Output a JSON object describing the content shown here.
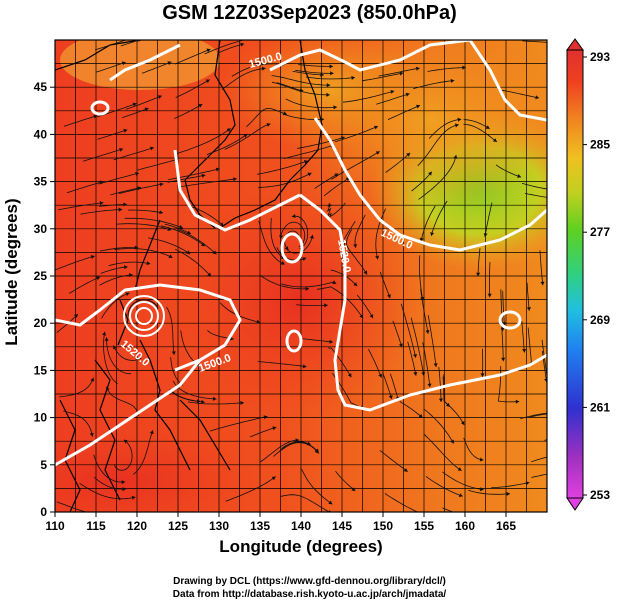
{
  "title": "GSM 12Z03Sep2023 (850.0hPa)",
  "map": {
    "xlabel": "Longitude (degrees)",
    "ylabel": "Latitude  (degrees)",
    "lon_range": [
      110,
      170
    ],
    "lat_range": [
      0,
      50
    ],
    "lon_ticks": [
      110,
      115,
      120,
      125,
      130,
      135,
      140,
      145,
      150,
      155,
      160,
      165
    ],
    "lat_ticks": [
      0,
      5,
      10,
      15,
      20,
      25,
      30,
      35,
      40,
      45
    ],
    "grid": true,
    "contour_labels": [
      "1500.0",
      "1500.0",
      "1520.0",
      "1500.0",
      "1520.0"
    ]
  },
  "colorbar": {
    "min": 253,
    "max": 293,
    "labels": [
      "293",
      "285",
      "277",
      "269",
      "261",
      "253"
    ],
    "colors": [
      "#e040e0",
      "#a030c0",
      "#3030d0",
      "#2080f0",
      "#20c0e0",
      "#30d080",
      "#60d020",
      "#c0d020",
      "#f0c020",
      "#f08020",
      "#f04020",
      "#e03030"
    ]
  },
  "credits": {
    "line1": "Drawing by DCL (https://www.gfd-dennou.org/library/dcl/)",
    "line2": "Data from http://database.rish.kyoto-u.ac.jp/arch/jmadata/"
  }
}
